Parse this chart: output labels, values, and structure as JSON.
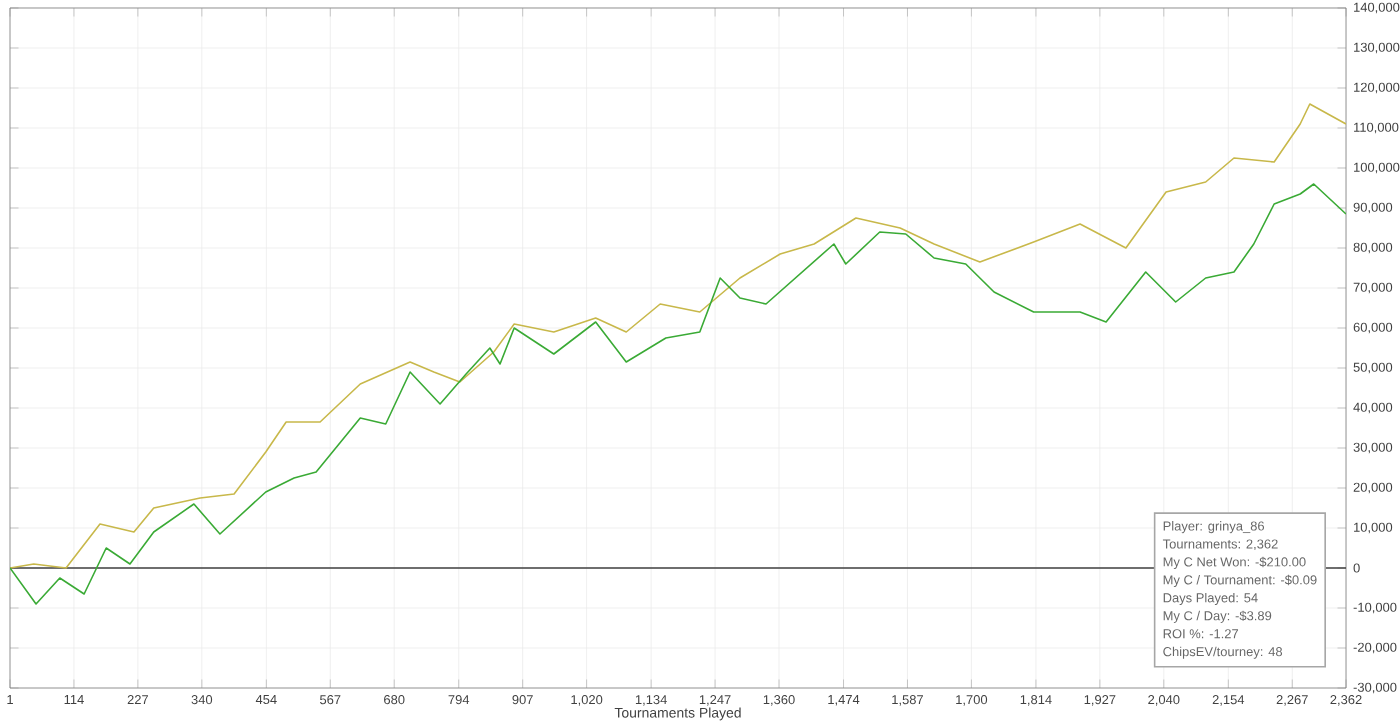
{
  "chart_data": {
    "type": "line",
    "xlabel": "Tournaments Played",
    "xlim": [
      1,
      2362
    ],
    "ylim": [
      -30000,
      140000
    ],
    "xticks": [
      1,
      114,
      227,
      340,
      454,
      567,
      680,
      794,
      907,
      {
        "value": 1020,
        "label": "1,020"
      },
      {
        "value": 1134,
        "label": "1,134"
      },
      {
        "value": 1247,
        "label": "1,247"
      },
      {
        "value": 1360,
        "label": "1,360"
      },
      {
        "value": 1474,
        "label": "1,474"
      },
      {
        "value": 1587,
        "label": "1,587"
      },
      {
        "value": 1700,
        "label": "1,700"
      },
      {
        "value": 1814,
        "label": "1,814"
      },
      {
        "value": 1927,
        "label": "1,927"
      },
      {
        "value": 2040,
        "label": "2,040"
      },
      {
        "value": 2154,
        "label": "2,154"
      },
      {
        "value": 2267,
        "label": "2,267"
      },
      {
        "value": 2362,
        "label": "2,362"
      }
    ],
    "yticks": [
      {
        "value": -30000,
        "label": "-30,000"
      },
      {
        "value": -20000,
        "label": "-20,000"
      },
      {
        "value": -10000,
        "label": "-10,000"
      },
      0,
      {
        "value": 10000,
        "label": "10,000"
      },
      {
        "value": 20000,
        "label": "20,000"
      },
      {
        "value": 30000,
        "label": "30,000"
      },
      {
        "value": 40000,
        "label": "40,000"
      },
      {
        "value": 50000,
        "label": "50,000"
      },
      {
        "value": 60000,
        "label": "60,000"
      },
      {
        "value": 70000,
        "label": "70,000"
      },
      {
        "value": 80000,
        "label": "80,000"
      },
      {
        "value": 90000,
        "label": "90,000"
      },
      {
        "value": 100000,
        "label": "100,000"
      },
      {
        "value": 110000,
        "label": "110,000"
      },
      {
        "value": 120000,
        "label": "120,000"
      },
      {
        "value": 130000,
        "label": "130,000"
      },
      {
        "value": 140000,
        "label": "140,000"
      }
    ],
    "grid": true,
    "series": [
      {
        "color": "#c8b84a",
        "x": [
          1,
          43,
          100,
          160,
          220,
          255,
          337,
          397,
          453,
          489,
          549,
          620,
          708,
          750,
          796,
          856,
          892,
          962,
          1036,
          1090,
          1150,
          1220,
          1291,
          1362,
          1422,
          1496,
          1574,
          1634,
          1715,
          1810,
          1892,
          1973,
          2044,
          2114,
          2164,
          2235,
          2281,
          2298,
          2362
        ],
        "values": [
          0,
          1000,
          0,
          11000,
          9000,
          15000,
          17500,
          18500,
          29000,
          36500,
          36500,
          46000,
          51500,
          49000,
          46500,
          54000,
          61000,
          59000,
          62500,
          59000,
          66000,
          64000,
          72500,
          78500,
          81000,
          87500,
          85000,
          81000,
          76500,
          81500,
          86000,
          80000,
          94000,
          96500,
          102500,
          101500,
          111000,
          116000,
          111000
        ]
      },
      {
        "color": "#3aaa35",
        "x": [
          1,
          47,
          89,
          132,
          171,
          213,
          255,
          326,
          372,
          453,
          503,
          542,
          620,
          665,
          708,
          761,
          807,
          849,
          867,
          892,
          962,
          1036,
          1090,
          1160,
          1220,
          1256,
          1291,
          1337,
          1457,
          1478,
          1538,
          1584,
          1634,
          1690,
          1740,
          1810,
          1892,
          1938,
          2008,
          2061,
          2114,
          2164,
          2199,
          2235,
          2281,
          2305,
          2362
        ],
        "values": [
          0,
          -9000,
          -2500,
          -6500,
          5000,
          1000,
          9000,
          16000,
          8500,
          19000,
          22500,
          24000,
          37500,
          36000,
          49000,
          41000,
          48500,
          55000,
          51000,
          60000,
          53500,
          61500,
          51500,
          57500,
          59000,
          72500,
          67500,
          66000,
          81000,
          76000,
          84000,
          83500,
          77500,
          76000,
          69000,
          64000,
          64000,
          61500,
          74000,
          66500,
          72500,
          74000,
          81000,
          91000,
          93500,
          96000,
          88500
        ]
      }
    ],
    "ref_lines": [
      {
        "axis": "y",
        "value": 0,
        "color": "#404040"
      }
    ],
    "annotations": [
      "Player: grinya_86",
      "Tournaments: 2,362",
      "My C Net Won: -$210.00",
      "My C / Tournament: -$0.09",
      "Days Played: 54",
      "My C / Day: -$3.89",
      "ROI %: -1.27",
      "ChipsEV/tourney: 48"
    ]
  }
}
